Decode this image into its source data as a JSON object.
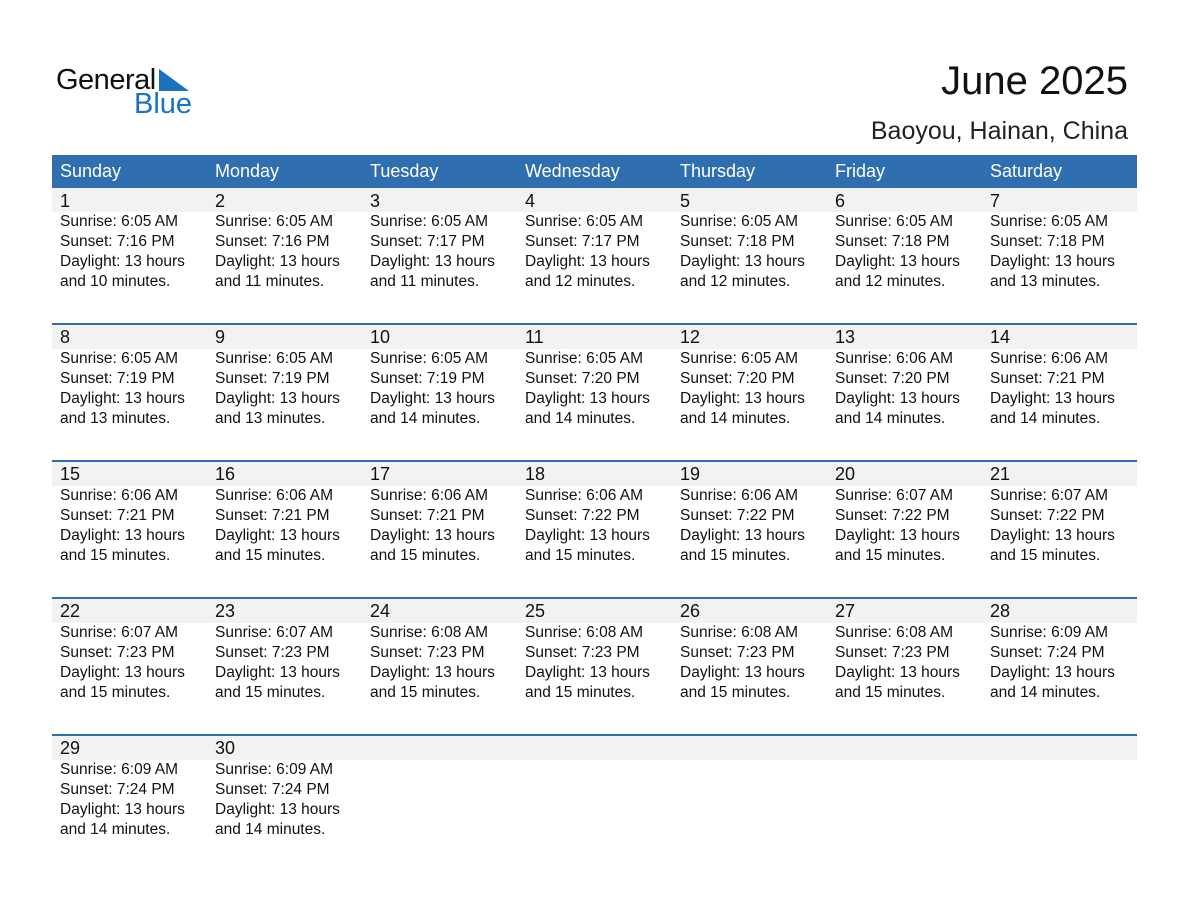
{
  "logo": {
    "line1": "General",
    "line2": "Blue"
  },
  "header": {
    "title": "June 2025",
    "location": "Baoyou, Hainan, China"
  },
  "colors": {
    "accent": "#2f6fb0",
    "band": "#f2f2f2",
    "logo_blue": "#1a73c0"
  },
  "weekdays": [
    "Sunday",
    "Monday",
    "Tuesday",
    "Wednesday",
    "Thursday",
    "Friday",
    "Saturday"
  ],
  "days": [
    {
      "day": "1",
      "sunrise": "Sunrise: 6:05 AM",
      "sunset": "Sunset: 7:16 PM",
      "daylight1": "Daylight: 13 hours",
      "daylight2": "and 10 minutes."
    },
    {
      "day": "2",
      "sunrise": "Sunrise: 6:05 AM",
      "sunset": "Sunset: 7:16 PM",
      "daylight1": "Daylight: 13 hours",
      "daylight2": "and 11 minutes."
    },
    {
      "day": "3",
      "sunrise": "Sunrise: 6:05 AM",
      "sunset": "Sunset: 7:17 PM",
      "daylight1": "Daylight: 13 hours",
      "daylight2": "and 11 minutes."
    },
    {
      "day": "4",
      "sunrise": "Sunrise: 6:05 AM",
      "sunset": "Sunset: 7:17 PM",
      "daylight1": "Daylight: 13 hours",
      "daylight2": "and 12 minutes."
    },
    {
      "day": "5",
      "sunrise": "Sunrise: 6:05 AM",
      "sunset": "Sunset: 7:18 PM",
      "daylight1": "Daylight: 13 hours",
      "daylight2": "and 12 minutes."
    },
    {
      "day": "6",
      "sunrise": "Sunrise: 6:05 AM",
      "sunset": "Sunset: 7:18 PM",
      "daylight1": "Daylight: 13 hours",
      "daylight2": "and 12 minutes."
    },
    {
      "day": "7",
      "sunrise": "Sunrise: 6:05 AM",
      "sunset": "Sunset: 7:18 PM",
      "daylight1": "Daylight: 13 hours",
      "daylight2": "and 13 minutes."
    },
    {
      "day": "8",
      "sunrise": "Sunrise: 6:05 AM",
      "sunset": "Sunset: 7:19 PM",
      "daylight1": "Daylight: 13 hours",
      "daylight2": "and 13 minutes."
    },
    {
      "day": "9",
      "sunrise": "Sunrise: 6:05 AM",
      "sunset": "Sunset: 7:19 PM",
      "daylight1": "Daylight: 13 hours",
      "daylight2": "and 13 minutes."
    },
    {
      "day": "10",
      "sunrise": "Sunrise: 6:05 AM",
      "sunset": "Sunset: 7:19 PM",
      "daylight1": "Daylight: 13 hours",
      "daylight2": "and 14 minutes."
    },
    {
      "day": "11",
      "sunrise": "Sunrise: 6:05 AM",
      "sunset": "Sunset: 7:20 PM",
      "daylight1": "Daylight: 13 hours",
      "daylight2": "and 14 minutes."
    },
    {
      "day": "12",
      "sunrise": "Sunrise: 6:05 AM",
      "sunset": "Sunset: 7:20 PM",
      "daylight1": "Daylight: 13 hours",
      "daylight2": "and 14 minutes."
    },
    {
      "day": "13",
      "sunrise": "Sunrise: 6:06 AM",
      "sunset": "Sunset: 7:20 PM",
      "daylight1": "Daylight: 13 hours",
      "daylight2": "and 14 minutes."
    },
    {
      "day": "14",
      "sunrise": "Sunrise: 6:06 AM",
      "sunset": "Sunset: 7:21 PM",
      "daylight1": "Daylight: 13 hours",
      "daylight2": "and 14 minutes."
    },
    {
      "day": "15",
      "sunrise": "Sunrise: 6:06 AM",
      "sunset": "Sunset: 7:21 PM",
      "daylight1": "Daylight: 13 hours",
      "daylight2": "and 15 minutes."
    },
    {
      "day": "16",
      "sunrise": "Sunrise: 6:06 AM",
      "sunset": "Sunset: 7:21 PM",
      "daylight1": "Daylight: 13 hours",
      "daylight2": "and 15 minutes."
    },
    {
      "day": "17",
      "sunrise": "Sunrise: 6:06 AM",
      "sunset": "Sunset: 7:21 PM",
      "daylight1": "Daylight: 13 hours",
      "daylight2": "and 15 minutes."
    },
    {
      "day": "18",
      "sunrise": "Sunrise: 6:06 AM",
      "sunset": "Sunset: 7:22 PM",
      "daylight1": "Daylight: 13 hours",
      "daylight2": "and 15 minutes."
    },
    {
      "day": "19",
      "sunrise": "Sunrise: 6:06 AM",
      "sunset": "Sunset: 7:22 PM",
      "daylight1": "Daylight: 13 hours",
      "daylight2": "and 15 minutes."
    },
    {
      "day": "20",
      "sunrise": "Sunrise: 6:07 AM",
      "sunset": "Sunset: 7:22 PM",
      "daylight1": "Daylight: 13 hours",
      "daylight2": "and 15 minutes."
    },
    {
      "day": "21",
      "sunrise": "Sunrise: 6:07 AM",
      "sunset": "Sunset: 7:22 PM",
      "daylight1": "Daylight: 13 hours",
      "daylight2": "and 15 minutes."
    },
    {
      "day": "22",
      "sunrise": "Sunrise: 6:07 AM",
      "sunset": "Sunset: 7:23 PM",
      "daylight1": "Daylight: 13 hours",
      "daylight2": "and 15 minutes."
    },
    {
      "day": "23",
      "sunrise": "Sunrise: 6:07 AM",
      "sunset": "Sunset: 7:23 PM",
      "daylight1": "Daylight: 13 hours",
      "daylight2": "and 15 minutes."
    },
    {
      "day": "24",
      "sunrise": "Sunrise: 6:08 AM",
      "sunset": "Sunset: 7:23 PM",
      "daylight1": "Daylight: 13 hours",
      "daylight2": "and 15 minutes."
    },
    {
      "day": "25",
      "sunrise": "Sunrise: 6:08 AM",
      "sunset": "Sunset: 7:23 PM",
      "daylight1": "Daylight: 13 hours",
      "daylight2": "and 15 minutes."
    },
    {
      "day": "26",
      "sunrise": "Sunrise: 6:08 AM",
      "sunset": "Sunset: 7:23 PM",
      "daylight1": "Daylight: 13 hours",
      "daylight2": "and 15 minutes."
    },
    {
      "day": "27",
      "sunrise": "Sunrise: 6:08 AM",
      "sunset": "Sunset: 7:23 PM",
      "daylight1": "Daylight: 13 hours",
      "daylight2": "and 15 minutes."
    },
    {
      "day": "28",
      "sunrise": "Sunrise: 6:09 AM",
      "sunset": "Sunset: 7:24 PM",
      "daylight1": "Daylight: 13 hours",
      "daylight2": "and 14 minutes."
    },
    {
      "day": "29",
      "sunrise": "Sunrise: 6:09 AM",
      "sunset": "Sunset: 7:24 PM",
      "daylight1": "Daylight: 13 hours",
      "daylight2": "and 14 minutes."
    },
    {
      "day": "30",
      "sunrise": "Sunrise: 6:09 AM",
      "sunset": "Sunset: 7:24 PM",
      "daylight1": "Daylight: 13 hours",
      "daylight2": "and 14 minutes."
    }
  ]
}
